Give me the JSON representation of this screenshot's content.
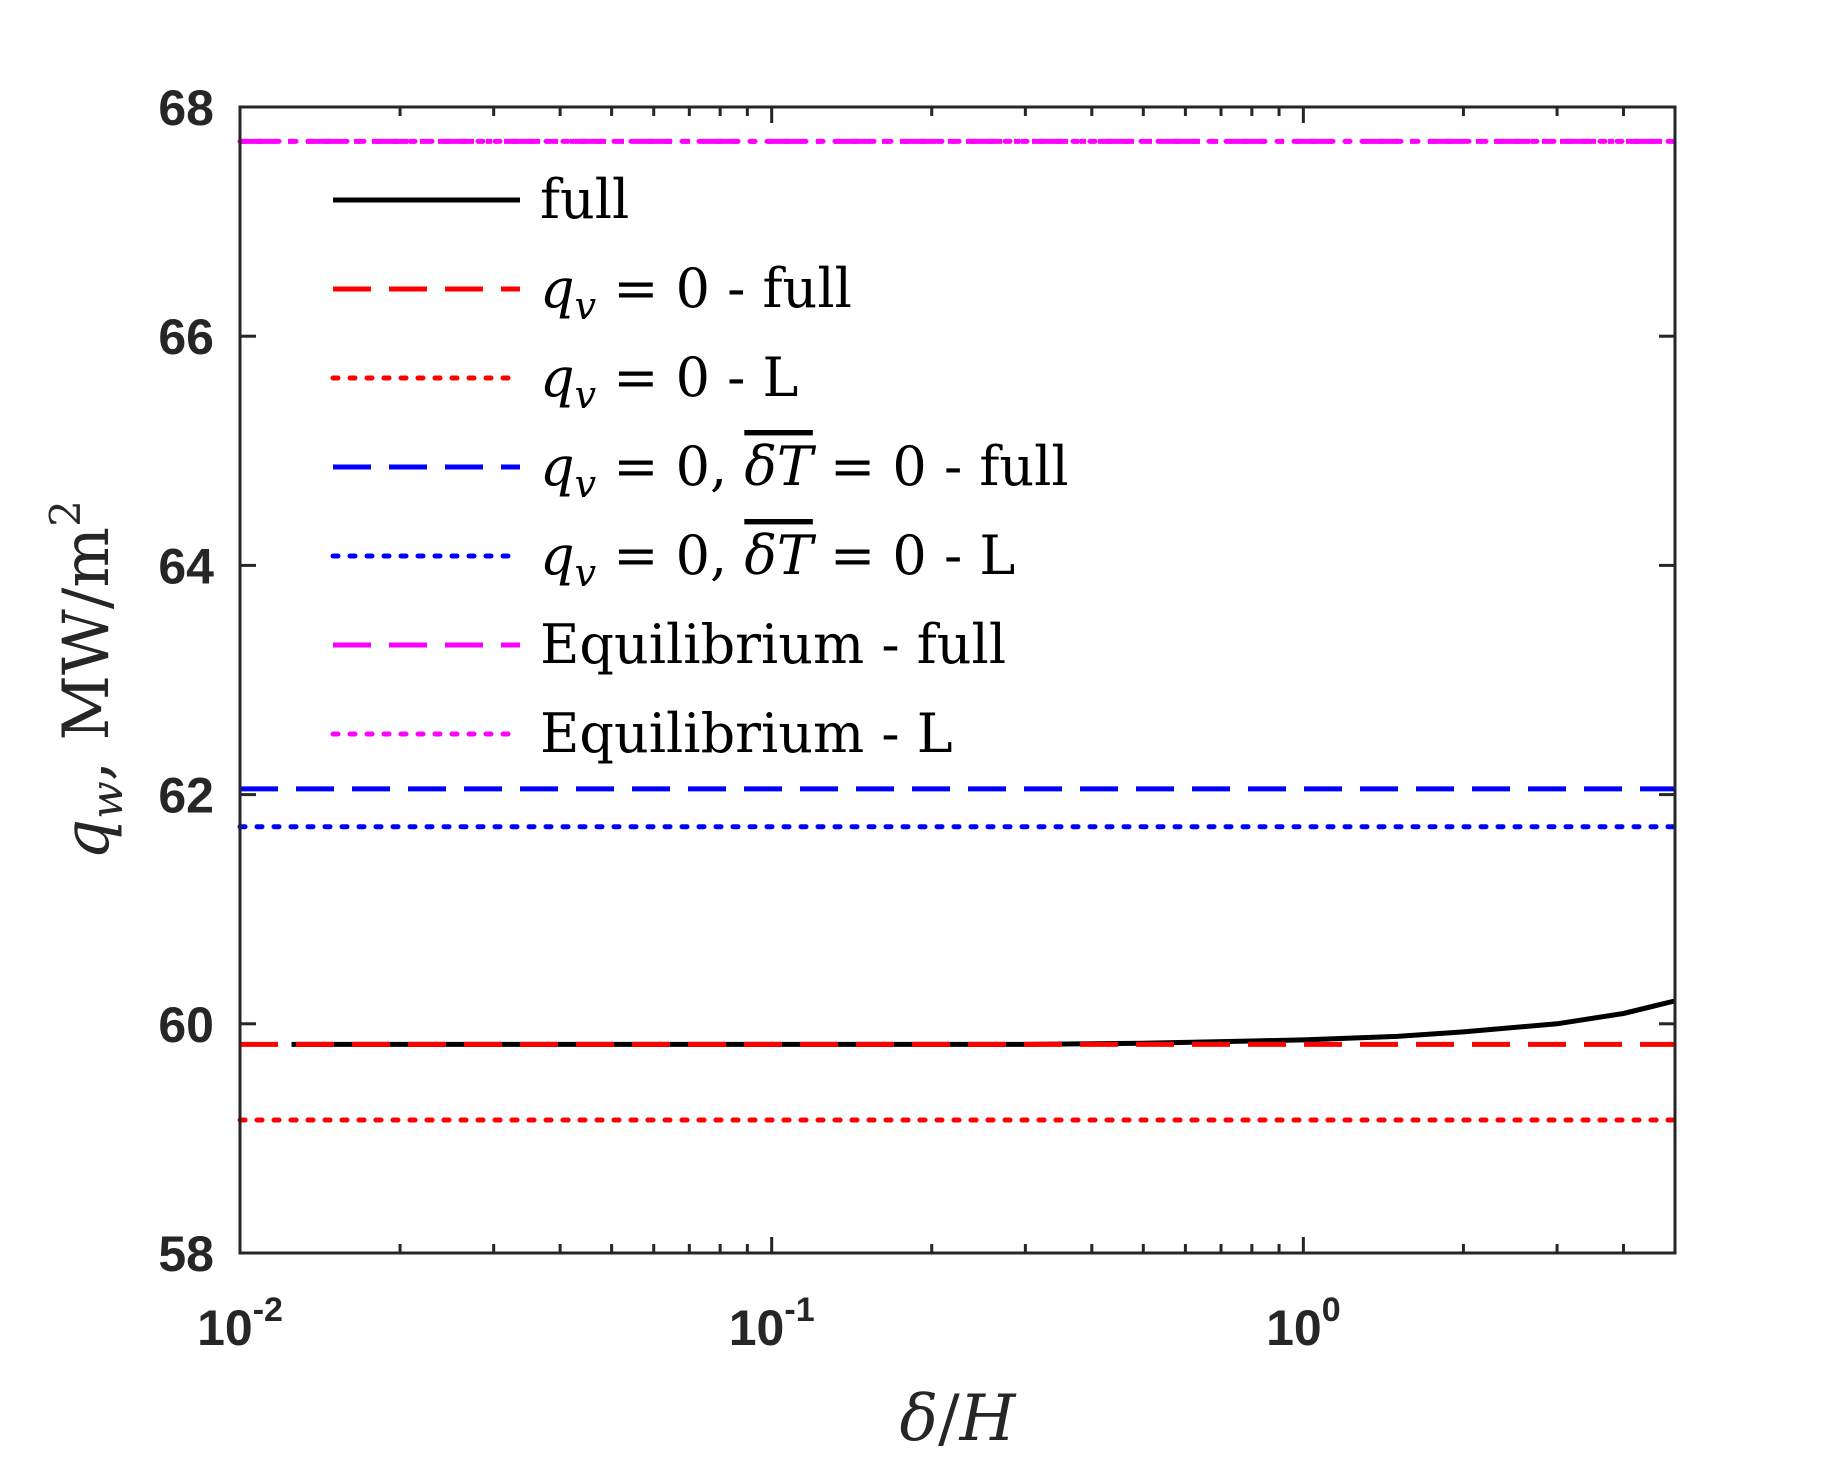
{
  "chart_data": {
    "type": "line",
    "xscale": "log",
    "xlim": [
      0.01,
      5
    ],
    "ylim": [
      58,
      68
    ],
    "xticks": [
      {
        "value": 0.01,
        "base": "10",
        "exp": "-2"
      },
      {
        "value": 0.1,
        "base": "10",
        "exp": "-1"
      },
      {
        "value": 1,
        "base": "10",
        "exp": "0"
      }
    ],
    "yticks": [
      {
        "value": 58,
        "label": "58"
      },
      {
        "value": 60,
        "label": "60"
      },
      {
        "value": 62,
        "label": "62"
      },
      {
        "value": 64,
        "label": "64"
      },
      {
        "value": 66,
        "label": "66"
      },
      {
        "value": 68,
        "label": "68"
      }
    ],
    "xlabel": {
      "italic1": "δ",
      "slash": "/",
      "italic2": "H"
    },
    "ylabel": {
      "var": "q",
      "sub": "w",
      "rest": ", MW/m",
      "sup": "2"
    },
    "legend_position": "upper-left",
    "series": [
      {
        "name": "full",
        "color": "#000000",
        "dash": "solid",
        "x": [
          0.0125,
          0.1,
          0.3,
          0.5,
          0.8,
          1.0,
          1.5,
          2.0,
          3.0,
          4.0,
          5.0
        ],
        "y": [
          59.82,
          59.82,
          59.82,
          59.83,
          59.85,
          59.86,
          59.89,
          59.93,
          60.0,
          60.09,
          60.2
        ]
      },
      {
        "name": "q_v = 0 - full",
        "color": "#ff0000",
        "dash": "dashed",
        "x": [
          0.01,
          5.0
        ],
        "y": [
          59.82,
          59.82
        ]
      },
      {
        "name": "q_v = 0 - L",
        "color": "#ff0000",
        "dash": "dotted",
        "x": [
          0.01,
          5.0
        ],
        "y": [
          59.16,
          59.16
        ]
      },
      {
        "name": "q_v = 0, δT = 0 - full",
        "color": "#0000ff",
        "dash": "dashed",
        "x": [
          0.01,
          5.0
        ],
        "y": [
          62.05,
          62.05
        ]
      },
      {
        "name": "q_v = 0, δT = 0 - L",
        "color": "#0000ff",
        "dash": "dotted",
        "x": [
          0.01,
          5.0
        ],
        "y": [
          61.72,
          61.72
        ]
      },
      {
        "name": "Equilibrium - full",
        "color": "#ff00ff",
        "dash": "dashed",
        "x": [
          0.01,
          5.0
        ],
        "y": [
          67.7,
          67.7
        ]
      },
      {
        "name": "Equilibrium - L",
        "color": "#ff00ff",
        "dash": "dotted",
        "x": [
          0.01,
          5.0
        ],
        "y": [
          67.7,
          67.7
        ]
      }
    ]
  },
  "legend": {
    "entries": [
      {
        "color": "#000000",
        "dash": "solid",
        "parts": [
          {
            "t": "full"
          }
        ]
      },
      {
        "color": "#ff0000",
        "dash": "dashed",
        "parts": [
          {
            "t": "q",
            "i": 1
          },
          {
            "t": "v",
            "sub": 1
          },
          {
            "t": " = 0 - full"
          }
        ]
      },
      {
        "color": "#ff0000",
        "dash": "dotted",
        "parts": [
          {
            "t": "q",
            "i": 1
          },
          {
            "t": "v",
            "sub": 1
          },
          {
            "t": " = 0 - L"
          }
        ]
      },
      {
        "color": "#0000ff",
        "dash": "dashed",
        "parts": [
          {
            "t": "q",
            "i": 1
          },
          {
            "t": "v",
            "sub": 1
          },
          {
            "t": " = 0, "
          },
          {
            "t": "δT",
            "i": 1,
            "over": 1
          },
          {
            "t": " = 0 - full"
          }
        ]
      },
      {
        "color": "#0000ff",
        "dash": "dotted",
        "parts": [
          {
            "t": "q",
            "i": 1
          },
          {
            "t": "v",
            "sub": 1
          },
          {
            "t": " = 0, "
          },
          {
            "t": "δT",
            "i": 1,
            "over": 1
          },
          {
            "t": " = 0 - L"
          }
        ]
      },
      {
        "color": "#ff00ff",
        "dash": "dashed",
        "parts": [
          {
            "t": "Equilibrium - full"
          }
        ]
      },
      {
        "color": "#ff00ff",
        "dash": "dotted",
        "parts": [
          {
            "t": "Equilibrium - L"
          }
        ]
      }
    ]
  }
}
